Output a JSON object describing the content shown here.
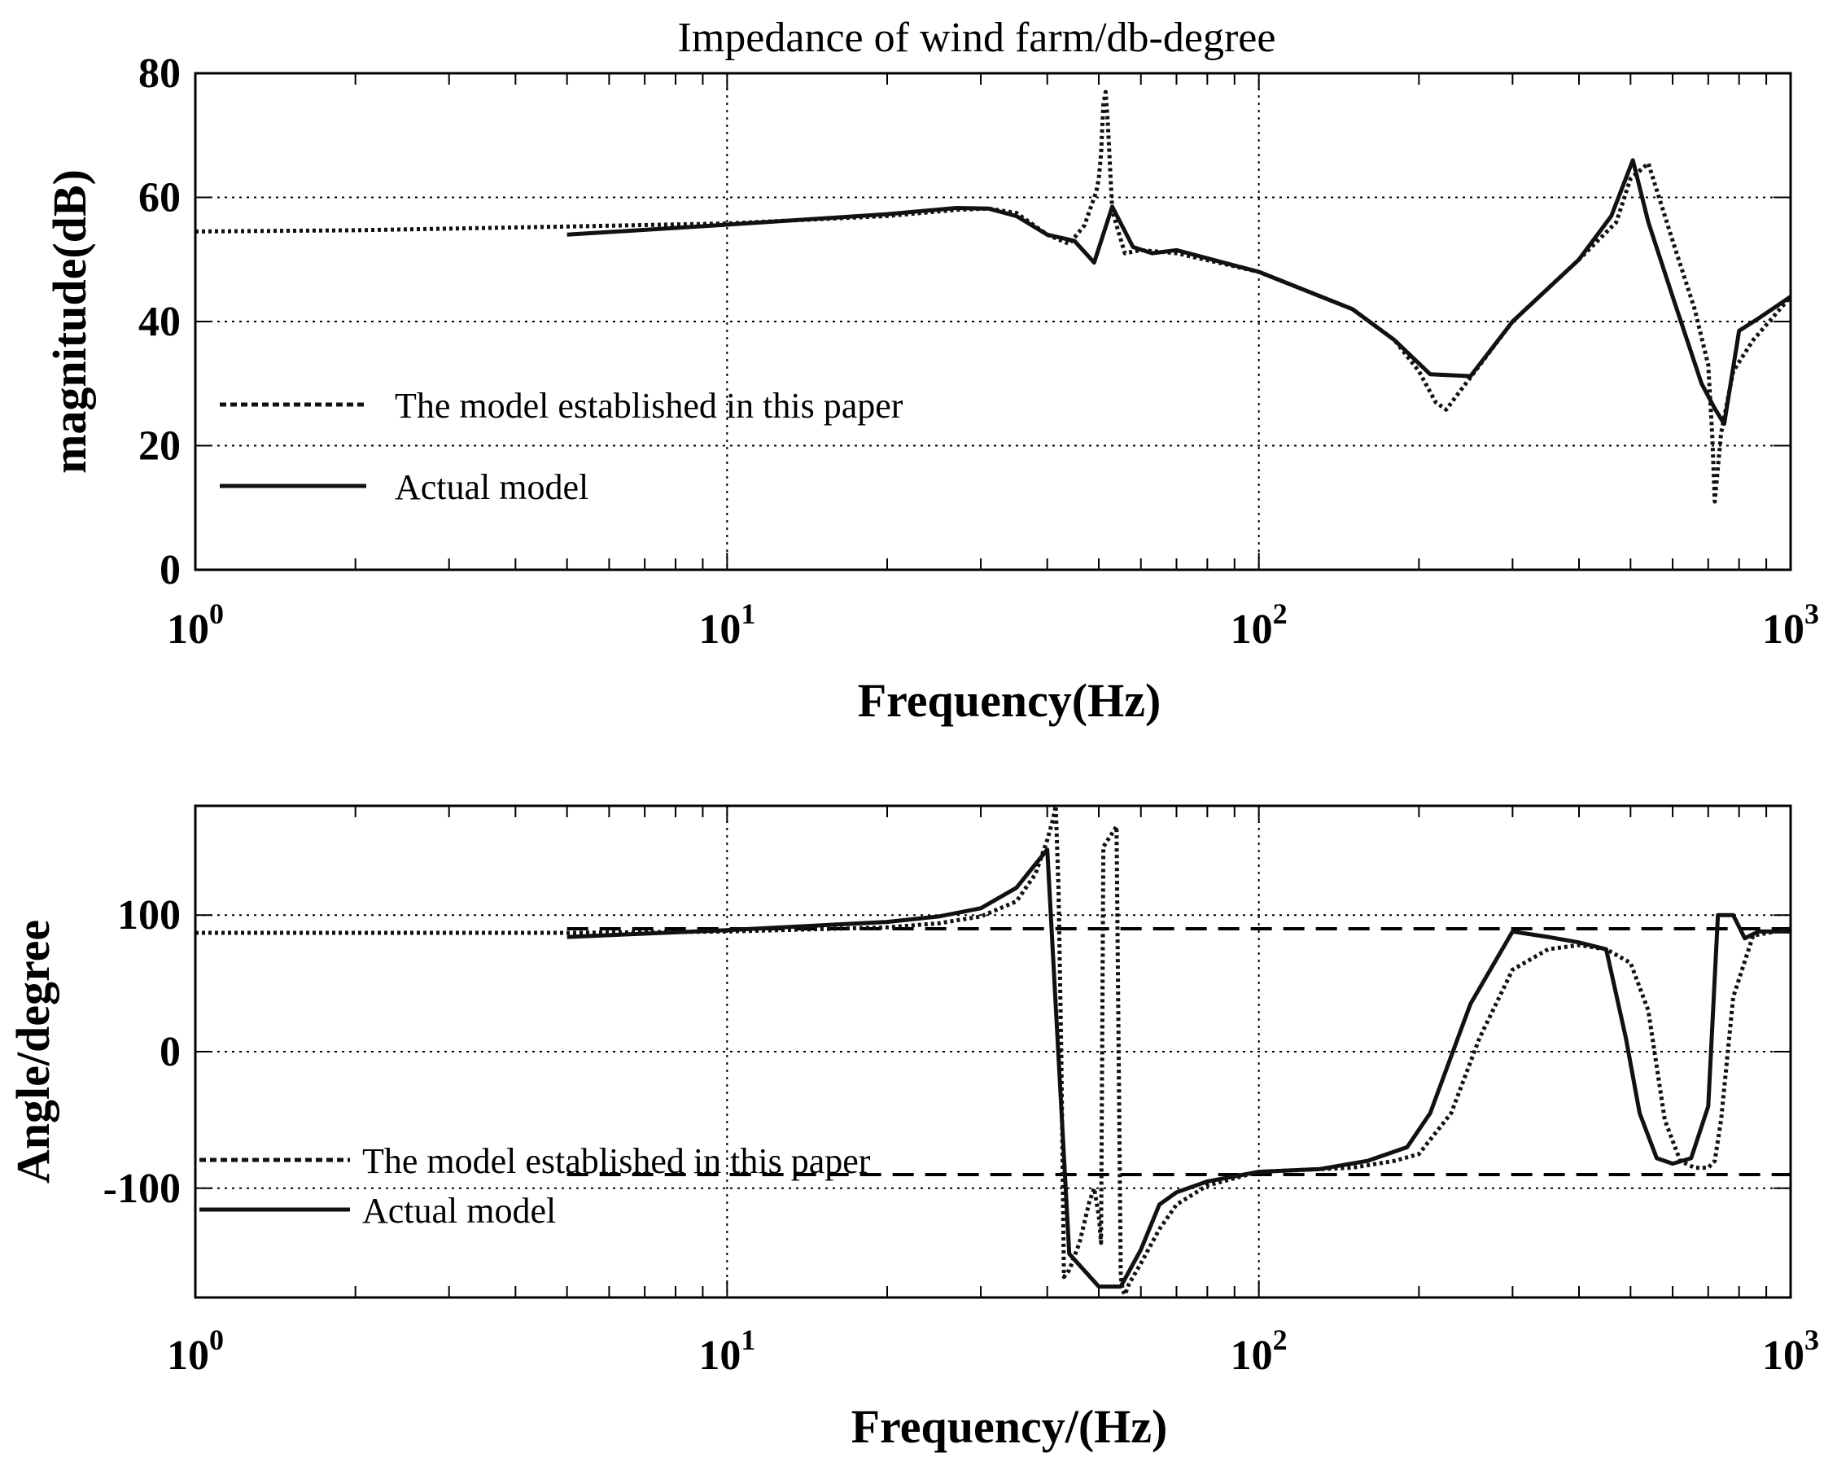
{
  "figure": {
    "title": "Impedance of wind farm/db-degree"
  },
  "chart_data": [
    {
      "type": "line",
      "xscale": "log",
      "xlim": [
        1,
        1000
      ],
      "ylim": [
        0,
        80
      ],
      "grid": true,
      "xlabel": "Frequency(Hz)",
      "ylabel": "magnitude(dB)",
      "xticks": [
        {
          "value": 1,
          "base": "10",
          "exp": "0"
        },
        {
          "value": 10,
          "base": "10",
          "exp": "1"
        },
        {
          "value": 100,
          "base": "10",
          "exp": "2"
        },
        {
          "value": 1000,
          "base": "10",
          "exp": "3"
        }
      ],
      "yticks": [
        0,
        20,
        40,
        60,
        80
      ],
      "legend": {
        "placement": "left",
        "entries": [
          {
            "label": "The model established in this paper",
            "style": "dotted"
          },
          {
            "label": "Actual model",
            "style": "solid"
          }
        ]
      },
      "series": [
        {
          "name": "The model established in this paper",
          "style": "dotted",
          "x": [
            1,
            2,
            5,
            10,
            20,
            27,
            31,
            35,
            40,
            44,
            47,
            49.5,
            50,
            50.5,
            51,
            51.5,
            52,
            52.5,
            53,
            54,
            56,
            60,
            70,
            100,
            150,
            180,
            200,
            215,
            225,
            240,
            300,
            400,
            470,
            500,
            540,
            600,
            660,
            700,
            712,
            720,
            740,
            780,
            850,
            1000
          ],
          "values": [
            54.5,
            54.7,
            55.3,
            55.8,
            57,
            58,
            58.2,
            57.5,
            54,
            52.5,
            55.5,
            61,
            63,
            67,
            75,
            77,
            72,
            65,
            58,
            55.5,
            51,
            51.5,
            51,
            48,
            42,
            37,
            32,
            27,
            25.8,
            29,
            40,
            50,
            56,
            63,
            65.5,
            53,
            42,
            33,
            22,
            11,
            22,
            32,
            37,
            44
          ]
        },
        {
          "name": "Actual model",
          "style": "solid",
          "x": [
            5,
            10,
            20,
            27,
            31,
            35,
            40,
            45,
            49,
            53,
            58,
            63,
            70,
            100,
            150,
            180,
            210,
            250,
            300,
            400,
            460,
            505,
            540,
            600,
            680,
            720,
            750,
            800,
            870,
            1000
          ],
          "values": [
            54,
            55.6,
            57.3,
            58.3,
            58.2,
            57,
            54,
            53,
            49.5,
            58.5,
            52,
            51,
            51.5,
            48,
            42,
            37,
            31.5,
            31.2,
            40,
            50,
            57,
            66,
            56,
            44,
            30,
            26,
            23.5,
            38.5,
            40.5,
            44
          ]
        }
      ]
    },
    {
      "type": "line",
      "xscale": "log",
      "xlim": [
        1,
        1000
      ],
      "ylim": [
        -180,
        180
      ],
      "grid": true,
      "xlabel": "Frequency/(Hz)",
      "ylabel": "Angle/degree",
      "xticks": [
        {
          "value": 1,
          "base": "10",
          "exp": "0"
        },
        {
          "value": 10,
          "base": "10",
          "exp": "1"
        },
        {
          "value": 100,
          "base": "10",
          "exp": "2"
        },
        {
          "value": 1000,
          "base": "10",
          "exp": "3"
        }
      ],
      "yticks": [
        -100,
        0,
        100
      ],
      "reference_lines": [
        90,
        -90
      ],
      "legend": {
        "placement": "bottom-left",
        "entries": [
          {
            "label": "The model established in this paper",
            "style": "dotted"
          },
          {
            "label": "Actual model",
            "style": "solid"
          }
        ]
      },
      "series": [
        {
          "name": "The model established in this paper",
          "style": "dotted",
          "x": [
            1,
            5,
            10,
            20,
            25,
            30,
            35,
            38,
            40,
            41,
            41.5,
            42,
            42.5,
            43,
            44,
            46,
            48,
            49,
            50,
            50.5,
            51,
            52,
            53,
            54,
            55,
            55.5,
            56,
            57,
            60,
            65,
            70,
            80,
            100,
            150,
            180,
            200,
            230,
            260,
            300,
            350,
            400,
            450,
            500,
            540,
            580,
            620,
            660,
            700,
            720,
            740,
            780,
            850,
            1000
          ],
          "values": [
            87,
            87,
            88,
            91,
            94,
            99,
            110,
            130,
            155,
            170,
            180,
            120,
            0,
            -165,
            -160,
            -140,
            -110,
            -100,
            -120,
            -140,
            150,
            155,
            160,
            165,
            -165,
            -175,
            -178,
            -170,
            -155,
            -130,
            -112,
            -98,
            -88,
            -85,
            -80,
            -75,
            -45,
            10,
            60,
            75,
            78,
            75,
            65,
            30,
            -50,
            -80,
            -85,
            -85,
            -80,
            -50,
            40,
            85,
            90
          ]
        },
        {
          "name": "Actual model",
          "style": "solid",
          "x": [
            5,
            10,
            20,
            25,
            30,
            35,
            40,
            44,
            50,
            55,
            60,
            65,
            70,
            80,
            100,
            130,
            160,
            190,
            210,
            250,
            300,
            350,
            400,
            450,
            490,
            520,
            560,
            600,
            650,
            700,
            730,
            780,
            820,
            870,
            1000
          ],
          "values": [
            84,
            89,
            95,
            99,
            105,
            120,
            148,
            -148,
            -172,
            -172,
            -145,
            -112,
            -103,
            -95,
            -88,
            -86,
            -80,
            -70,
            -45,
            35,
            88,
            84,
            80,
            75,
            10,
            -45,
            -78,
            -82,
            -78,
            -40,
            100,
            100,
            83,
            88,
            88
          ]
        }
      ]
    }
  ]
}
